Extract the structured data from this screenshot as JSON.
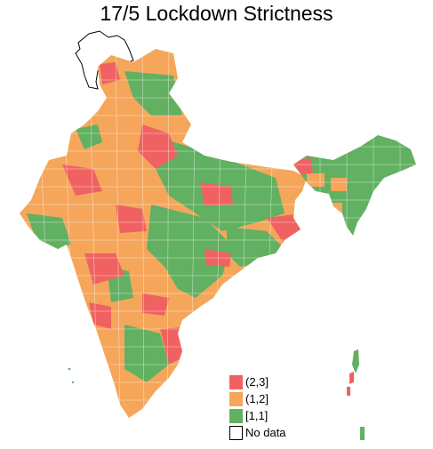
{
  "title": "17/5 Lockdown Strictness",
  "colors": {
    "high": "#f06262",
    "mid": "#f5a65b",
    "low": "#62b062",
    "nodata": "#ffffff",
    "border": "#ffffff",
    "nodata_outline": "#000000"
  },
  "legend": [
    {
      "label": "(2,3]",
      "color": "#f06262"
    },
    {
      "label": "(1,2]",
      "color": "#f5a65b"
    },
    {
      "label": "[1,1]",
      "color": "#62b062"
    },
    {
      "label": "No data",
      "color": "#ffffff"
    }
  ]
}
